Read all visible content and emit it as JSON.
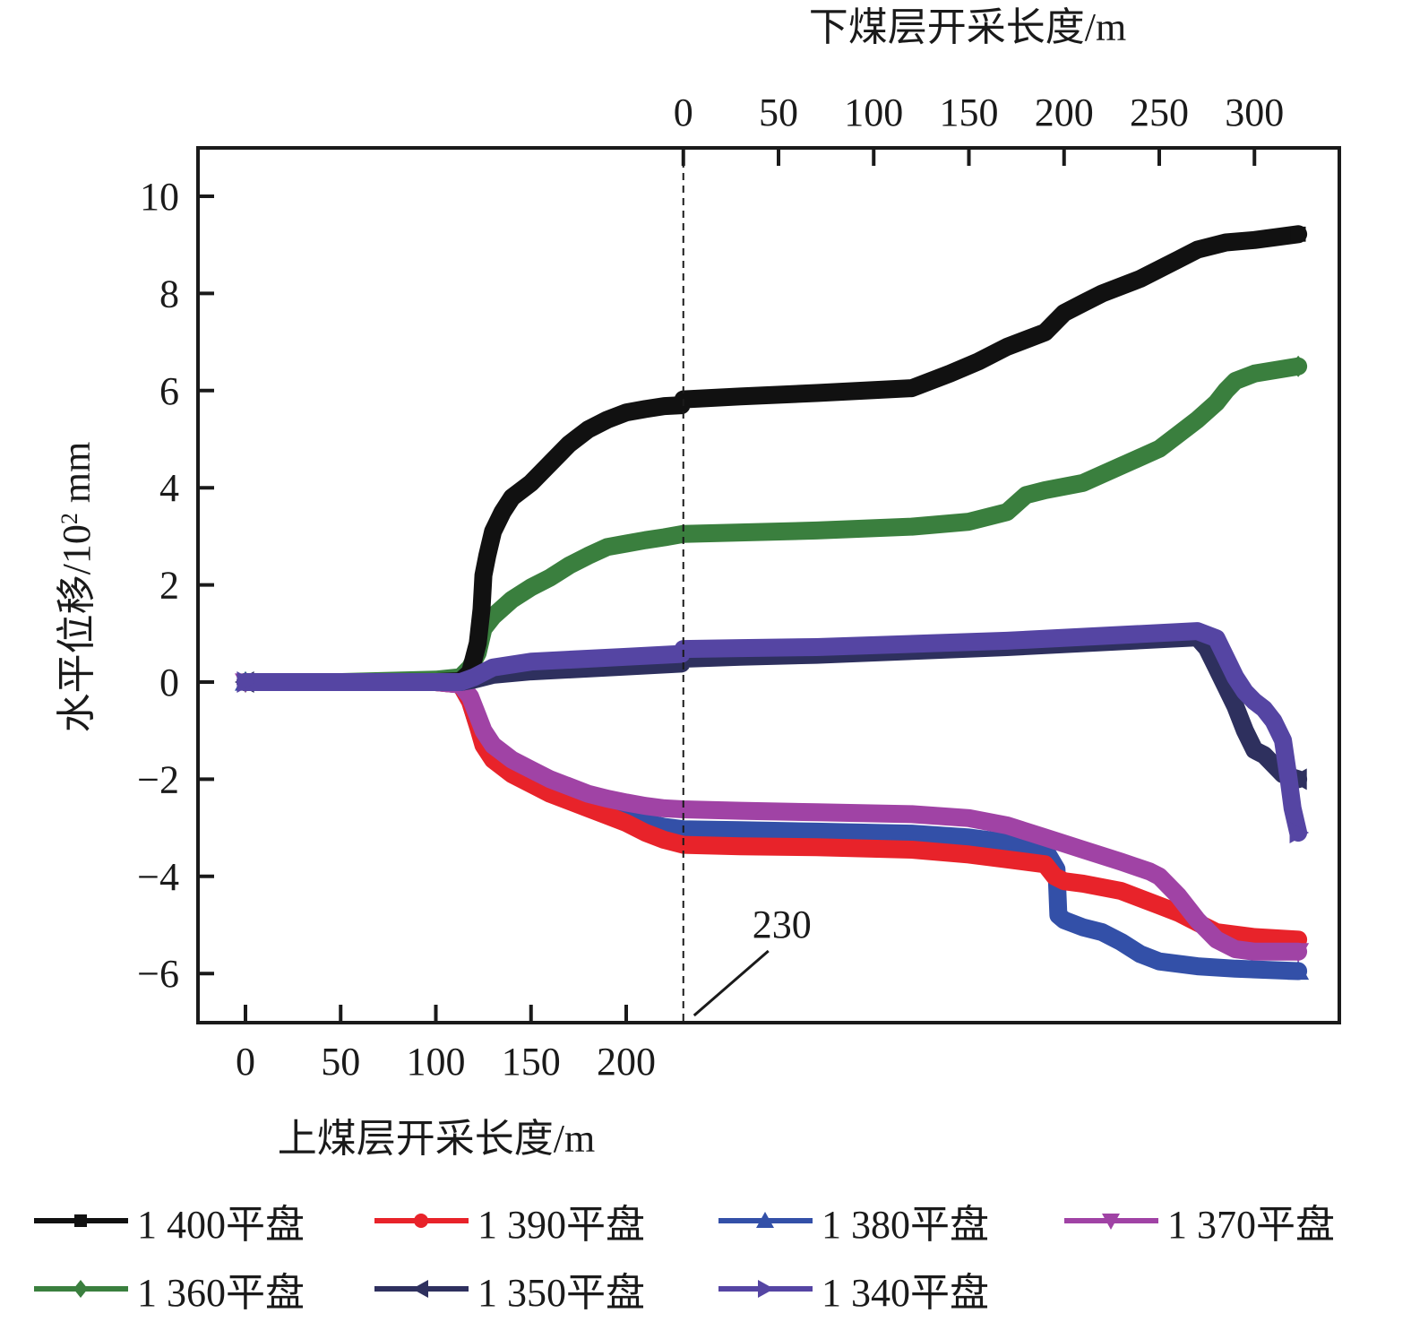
{
  "chart_data": {
    "type": "line",
    "title": "",
    "ylabel": "水平位移/10² mm",
    "ylabel_parts": {
      "main": "水平位移/10",
      "sup": "2",
      "unit": " mm"
    },
    "ylim": [
      -7,
      11
    ],
    "yticks": [
      -6,
      -4,
      -2,
      0,
      2,
      4,
      6,
      8,
      10
    ],
    "ytick_labels": [
      "−6",
      "−4",
      "−2",
      "0",
      "2",
      "4",
      "6",
      "8",
      "10"
    ],
    "grid": false,
    "x_bottom": {
      "label": "上煤层开采长度/m",
      "ticks": [
        0,
        50,
        100,
        150,
        200
      ],
      "range_start": -25
    },
    "x_top": {
      "label": "下煤层开采长度/m",
      "ticks": [
        0,
        50,
        100,
        150,
        200,
        250,
        300
      ],
      "offset": 230
    },
    "xlim_total": [
      -25,
      575
    ],
    "divider": {
      "x_total": 230,
      "style": "dashed",
      "annotation": "230"
    },
    "legend_position": "bottom",
    "x_note": "x values are cumulative mining length: upper seam 0–230 m, then lower seam length + 230",
    "series": [
      {
        "name": "1 400平盘",
        "color": "#111111",
        "marker": "square",
        "x": [
          0,
          50,
          100,
          113,
          118,
          122,
          124,
          125,
          127,
          130,
          135,
          140,
          150,
          160,
          170,
          180,
          190,
          200,
          210,
          220,
          229,
          230,
          260,
          300,
          350,
          370,
          385,
          400,
          420,
          430,
          440,
          450,
          470,
          490,
          500,
          515,
          530,
          553
        ],
        "y": [
          0,
          0,
          0,
          0.02,
          0.2,
          0.8,
          1.5,
          2.2,
          2.6,
          3.1,
          3.5,
          3.8,
          4.1,
          4.5,
          4.9,
          5.2,
          5.4,
          5.55,
          5.62,
          5.68,
          5.7,
          5.82,
          5.88,
          5.95,
          6.05,
          6.35,
          6.6,
          6.9,
          7.2,
          7.6,
          7.8,
          8.0,
          8.3,
          8.7,
          8.9,
          9.05,
          9.1,
          9.22
        ]
      },
      {
        "name": "1 390平盘",
        "color": "#e8232a",
        "marker": "circle",
        "x": [
          0,
          50,
          100,
          113,
          118,
          122,
          125,
          130,
          140,
          150,
          160,
          170,
          180,
          190,
          200,
          210,
          220,
          230,
          260,
          300,
          350,
          380,
          400,
          420,
          425,
          430,
          440,
          460,
          480,
          490,
          500,
          510,
          530,
          553
        ],
        "y": [
          0,
          0,
          0,
          -0.05,
          -0.4,
          -0.9,
          -1.3,
          -1.6,
          -1.9,
          -2.1,
          -2.3,
          -2.45,
          -2.6,
          -2.75,
          -2.9,
          -3.1,
          -3.25,
          -3.35,
          -3.38,
          -3.4,
          -3.45,
          -3.55,
          -3.65,
          -3.75,
          -4.0,
          -4.1,
          -4.15,
          -4.3,
          -4.6,
          -4.75,
          -4.95,
          -5.15,
          -5.25,
          -5.3
        ]
      },
      {
        "name": "1 380平盘",
        "color": "#3350a8",
        "marker": "triangle-up",
        "x": [
          0,
          50,
          100,
          113,
          118,
          122,
          125,
          130,
          140,
          150,
          160,
          170,
          180,
          190,
          200,
          210,
          220,
          230,
          260,
          300,
          350,
          380,
          400,
          410,
          420,
          426,
          427,
          430,
          440,
          450,
          460,
          470,
          480,
          500,
          520,
          553
        ],
        "y": [
          0,
          0,
          0,
          -0.05,
          -0.4,
          -0.9,
          -1.2,
          -1.5,
          -1.8,
          -2.05,
          -2.25,
          -2.4,
          -2.55,
          -2.7,
          -2.8,
          -2.9,
          -2.98,
          -3.03,
          -3.05,
          -3.08,
          -3.12,
          -3.2,
          -3.3,
          -3.35,
          -3.45,
          -3.85,
          -4.8,
          -4.9,
          -5.05,
          -5.15,
          -5.35,
          -5.6,
          -5.75,
          -5.85,
          -5.9,
          -5.95
        ]
      },
      {
        "name": "1 370平盘",
        "color": "#a043a5",
        "marker": "triangle-down",
        "x": [
          0,
          50,
          100,
          113,
          118,
          122,
          125,
          130,
          140,
          150,
          160,
          170,
          180,
          190,
          200,
          210,
          220,
          230,
          260,
          300,
          350,
          380,
          400,
          420,
          440,
          460,
          475,
          480,
          490,
          500,
          510,
          520,
          530,
          553
        ],
        "y": [
          0,
          0,
          0,
          -0.05,
          -0.3,
          -0.7,
          -1.0,
          -1.3,
          -1.6,
          -1.8,
          -2.0,
          -2.15,
          -2.3,
          -2.4,
          -2.48,
          -2.55,
          -2.6,
          -2.62,
          -2.65,
          -2.68,
          -2.72,
          -2.8,
          -2.95,
          -3.2,
          -3.45,
          -3.7,
          -3.9,
          -4.0,
          -4.4,
          -4.9,
          -5.3,
          -5.5,
          -5.55,
          -5.55
        ]
      },
      {
        "name": "1 360平盘",
        "color": "#3a7f3e",
        "marker": "diamond",
        "x": [
          0,
          50,
          100,
          113,
          118,
          122,
          125,
          130,
          140,
          150,
          160,
          170,
          180,
          190,
          200,
          210,
          220,
          230,
          260,
          300,
          350,
          380,
          400,
          410,
          420,
          440,
          460,
          480,
          490,
          500,
          510,
          515,
          520,
          530,
          553
        ],
        "y": [
          0,
          0,
          0.05,
          0.1,
          0.3,
          0.6,
          1.1,
          1.35,
          1.7,
          1.95,
          2.15,
          2.4,
          2.6,
          2.78,
          2.85,
          2.92,
          2.98,
          3.05,
          3.08,
          3.12,
          3.2,
          3.3,
          3.5,
          3.85,
          3.95,
          4.1,
          4.45,
          4.8,
          5.1,
          5.4,
          5.75,
          6.0,
          6.2,
          6.35,
          6.5
        ]
      },
      {
        "name": "1 350平盘",
        "color": "#2e305e",
        "marker": "triangle-left",
        "x": [
          0,
          50,
          100,
          113,
          120,
          130,
          150,
          200,
          229,
          230,
          260,
          300,
          400,
          500,
          505,
          510,
          515,
          520,
          525,
          530,
          535,
          540,
          545,
          553
        ],
        "y": [
          0,
          0,
          0,
          0,
          0.05,
          0.15,
          0.22,
          0.32,
          0.38,
          0.48,
          0.52,
          0.56,
          0.72,
          0.92,
          0.7,
          0.3,
          -0.1,
          -0.5,
          -1.0,
          -1.4,
          -1.5,
          -1.7,
          -1.9,
          -2.0
        ]
      },
      {
        "name": "1 340平盘",
        "color": "#5545a3",
        "marker": "triangle-right",
        "x": [
          0,
          50,
          100,
          113,
          120,
          130,
          150,
          200,
          229,
          230,
          260,
          300,
          400,
          500,
          510,
          515,
          520,
          525,
          530,
          535,
          540,
          545,
          548,
          550,
          553
        ],
        "y": [
          0,
          0,
          0,
          0,
          0.1,
          0.3,
          0.42,
          0.52,
          0.58,
          0.68,
          0.7,
          0.72,
          0.85,
          1.05,
          0.9,
          0.5,
          0.1,
          -0.2,
          -0.4,
          -0.55,
          -0.8,
          -1.2,
          -2.0,
          -2.6,
          -3.1
        ]
      }
    ]
  }
}
